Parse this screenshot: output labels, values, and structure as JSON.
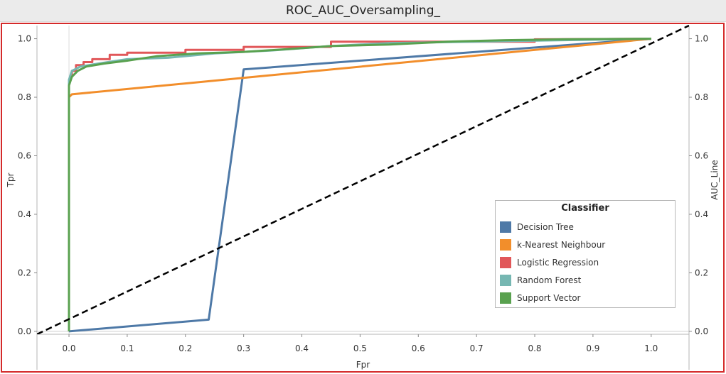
{
  "window": {
    "title": "ROC_AUC_Oversampling_"
  },
  "chart_data": {
    "type": "line",
    "title": "ROC_AUC_Oversampling_",
    "xlabel": "Fpr",
    "ylabel": "Tpr",
    "y2label": "AUC_Line",
    "xlim": [
      -0.055,
      1.065
    ],
    "ylim": [
      -0.01,
      1.045
    ],
    "x_ticks": [
      "0.0",
      "0.1",
      "0.2",
      "0.3",
      "0.4",
      "0.5",
      "0.6",
      "0.7",
      "0.8",
      "0.9",
      "1.0"
    ],
    "x_tick_values": [
      0,
      0.1,
      0.2,
      0.3,
      0.4,
      0.5,
      0.6,
      0.7,
      0.8,
      0.9,
      1.0
    ],
    "y_ticks": [
      "0.0",
      "0.2",
      "0.4",
      "0.6",
      "0.8",
      "1.0"
    ],
    "y_tick_values": [
      0,
      0.2,
      0.4,
      0.6,
      0.8,
      1.0
    ],
    "y2_ticks": [
      "0.0",
      "0.2",
      "0.4",
      "0.6",
      "0.8",
      "1.0"
    ],
    "legend": {
      "title": "Classifier",
      "position": "bottom-right"
    },
    "series": [
      {
        "name": "Decision Tree",
        "color": "#4e79a7",
        "x": [
          0,
          0.24,
          0.3,
          1.0
        ],
        "y": [
          0,
          0.04,
          0.895,
          1.0
        ]
      },
      {
        "name": "k-Nearest Neighbour",
        "color": "#f28e2b",
        "x": [
          0,
          0,
          0.005,
          1.0
        ],
        "y": [
          0,
          0.8,
          0.81,
          1.0
        ]
      },
      {
        "name": "Logistic Regression",
        "color": "#e15759",
        "x": [
          0,
          0,
          0.002,
          0.005,
          0.005,
          0.012,
          0.012,
          0.025,
          0.025,
          0.04,
          0.04,
          0.07,
          0.07,
          0.1,
          0.1,
          0.2,
          0.2,
          0.3,
          0.3,
          0.45,
          0.45,
          0.8,
          0.8,
          1.0
        ],
        "y": [
          0,
          0.85,
          0.87,
          0.87,
          0.89,
          0.89,
          0.91,
          0.91,
          0.92,
          0.92,
          0.93,
          0.93,
          0.945,
          0.945,
          0.952,
          0.952,
          0.962,
          0.962,
          0.972,
          0.972,
          0.99,
          0.99,
          0.998,
          1.0
        ]
      },
      {
        "name": "Random Forest",
        "color": "#76b7b2",
        "x": [
          0,
          0,
          0.005,
          0.02,
          0.05,
          0.1,
          0.17,
          0.25,
          0.35,
          0.45,
          0.55,
          0.7,
          0.85,
          1.0
        ],
        "y": [
          0,
          0.86,
          0.89,
          0.905,
          0.915,
          0.93,
          0.935,
          0.95,
          0.96,
          0.975,
          0.985,
          0.99,
          0.995,
          1.0
        ]
      },
      {
        "name": "Support Vector",
        "color": "#59a14f",
        "x": [
          0,
          0,
          0.005,
          0.015,
          0.03,
          0.06,
          0.1,
          0.15,
          0.22,
          0.3,
          0.38,
          0.45,
          0.55,
          0.65,
          0.75,
          0.85,
          1.0
        ],
        "y": [
          0,
          0.84,
          0.87,
          0.89,
          0.905,
          0.915,
          0.925,
          0.94,
          0.95,
          0.955,
          0.965,
          0.975,
          0.98,
          0.99,
          0.995,
          0.998,
          1.0
        ]
      },
      {
        "name": "AUC_Line",
        "color": "#000000",
        "dashed": true,
        "x": [
          -0.055,
          1.065
        ],
        "y": [
          -0.01,
          1.045
        ]
      }
    ]
  }
}
